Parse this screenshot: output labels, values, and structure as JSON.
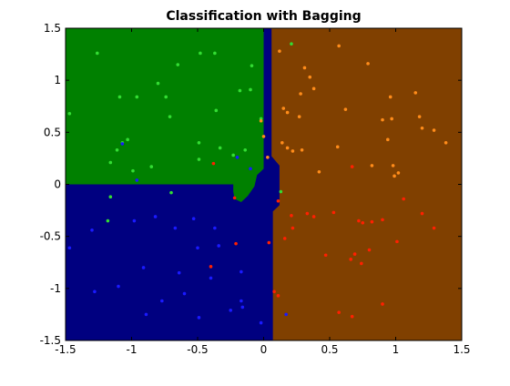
{
  "chart_data": {
    "type": "scatter",
    "title": "Classification with Bagging",
    "xlim": [
      -1.5,
      1.5
    ],
    "ylim": [
      -1.5,
      1.5
    ],
    "xticks": [
      -1.5,
      -1,
      -0.5,
      0,
      0.5,
      1,
      1.5
    ],
    "yticks": [
      -1.5,
      -1,
      -0.5,
      0,
      0.5,
      1,
      1.5
    ],
    "grid": false,
    "regions": [
      {
        "color": "#000080",
        "x": [
          -1.5,
          1.5,
          1.5,
          -1.5
        ],
        "y": [
          -1.5,
          -1.5,
          1.5,
          1.5
        ]
      },
      {
        "color": "#008000",
        "x": [
          -1.5,
          0,
          0,
          -0.05,
          -0.07,
          -0.12,
          -0.17,
          -0.22,
          -0.23,
          -0.23,
          -1.5
        ],
        "y": [
          1.5,
          1.5,
          0.15,
          0.09,
          -0.02,
          -0.11,
          -0.17,
          -0.14,
          -0.07,
          0,
          0
        ]
      },
      {
        "color": "#804000",
        "x": [
          0.06,
          1.5,
          1.5,
          0.07,
          0.07,
          0.12,
          0.12,
          0.06
        ],
        "y": [
          1.5,
          1.5,
          -1.5,
          -1.5,
          -0.26,
          -0.2,
          0.18,
          0.27
        ]
      }
    ],
    "series": [
      {
        "color": "#33dd33",
        "x": [
          -1.26,
          -1.47,
          -1.09,
          -0.96,
          -0.8,
          -0.74,
          -0.65,
          -0.48,
          -0.37,
          -0.71,
          -0.36,
          -0.18,
          -0.1,
          -0.09,
          -0.02,
          -1.03,
          -1.07,
          -1.11,
          -0.99,
          -1.16,
          -0.85,
          -0.49,
          -0.49,
          -0.33,
          -0.23,
          -0.7,
          -1.16,
          -1.18,
          0.13,
          0.21,
          -0.14
        ],
        "y": [
          1.26,
          0.68,
          0.84,
          0.84,
          0.97,
          0.84,
          1.15,
          1.26,
          1.26,
          0.65,
          0.71,
          0.9,
          0.91,
          1.14,
          0.63,
          0.43,
          0.4,
          0.33,
          0.13,
          0.21,
          0.17,
          0.4,
          0.24,
          0.35,
          0.28,
          -0.08,
          -0.12,
          -0.35,
          -0.07,
          1.35,
          0.33
        ]
      },
      {
        "color": "#ff8c1a",
        "x": [
          0.57,
          0.79,
          0.12,
          0.31,
          0.35,
          0.38,
          0.28,
          0.62,
          0.96,
          1.15,
          0.15,
          0.18,
          0.27,
          -0.02,
          0,
          0.14,
          0.18,
          0.22,
          0.29,
          0.56,
          0.9,
          0.97,
          0.94,
          1.18,
          1.2,
          1.29,
          1.38,
          0.98,
          1.02,
          0.99,
          0.42,
          0.82,
          0.03
        ],
        "y": [
          1.33,
          1.16,
          1.28,
          1.12,
          1.03,
          0.92,
          0.87,
          0.72,
          0.84,
          0.88,
          0.73,
          0.69,
          0.65,
          0.61,
          0.46,
          0.4,
          0.35,
          0.32,
          0.33,
          0.36,
          0.62,
          0.63,
          0.43,
          0.65,
          0.54,
          0.52,
          0.4,
          0.18,
          0.11,
          0.08,
          0.12,
          0.18,
          0.26
        ]
      },
      {
        "color": "#ff2000",
        "x": [
          -0.38,
          0.67,
          0.11,
          0.21,
          0.33,
          0.38,
          0.22,
          0.16,
          0.53,
          0.72,
          0.75,
          0.82,
          0.9,
          1.06,
          1.2,
          1.29,
          1.01,
          0.8,
          0.69,
          0.47,
          0.74,
          0.66,
          -0.21,
          0.04,
          -0.4,
          0.08,
          0.11,
          0.9,
          0.57,
          0.67,
          -0.22
        ],
        "y": [
          0.2,
          0.17,
          -0.16,
          -0.3,
          -0.28,
          -0.31,
          -0.42,
          -0.52,
          -0.27,
          -0.35,
          -0.37,
          -0.36,
          -0.34,
          -0.14,
          -0.28,
          -0.42,
          -0.55,
          -0.63,
          -0.67,
          -0.68,
          -0.76,
          -0.72,
          -0.57,
          -0.56,
          -0.79,
          -1.03,
          -1.07,
          -1.15,
          -1.23,
          -1.27,
          -0.13
        ]
      },
      {
        "color": "#1a1aff",
        "x": [
          -1.07,
          -0.96,
          -0.2,
          -0.1,
          -1.3,
          -1.47,
          -0.98,
          -0.82,
          -0.53,
          -0.34,
          -0.67,
          -0.5,
          -0.37,
          -1.28,
          -1.1,
          -0.91,
          -0.89,
          -0.64,
          -0.4,
          -0.77,
          -0.17,
          -0.02,
          0.17,
          -0.25,
          -0.49,
          -0.6,
          -0.17,
          -0.16
        ],
        "y": [
          0.39,
          0.04,
          0.26,
          0.15,
          -0.44,
          -0.61,
          -0.35,
          -0.31,
          -0.33,
          -0.59,
          -0.42,
          -0.61,
          -0.42,
          -1.03,
          -0.98,
          -0.8,
          -1.25,
          -0.85,
          -0.9,
          -1.12,
          -0.84,
          -1.33,
          -1.25,
          -1.21,
          -1.28,
          -1.05,
          -1.12,
          -1.18
        ]
      }
    ]
  }
}
